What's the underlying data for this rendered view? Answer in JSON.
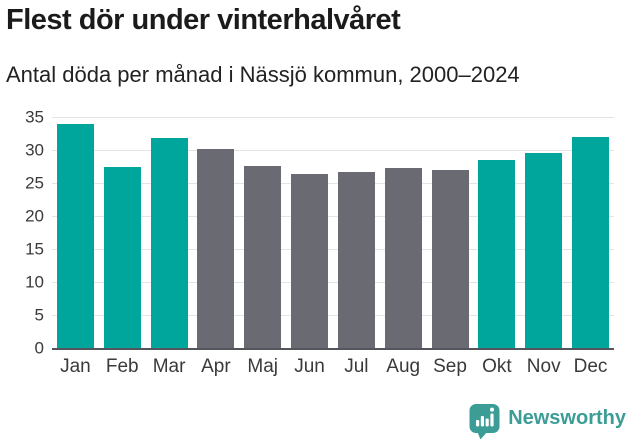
{
  "chart_data": {
    "type": "bar",
    "title": "Flest dör under vinterhalvåret",
    "subtitle": "Antal döda per månad i Nässjö kommun, 2000–2024",
    "categories": [
      "Jan",
      "Feb",
      "Mar",
      "Apr",
      "Maj",
      "Jun",
      "Jul",
      "Aug",
      "Sep",
      "Okt",
      "Nov",
      "Dec"
    ],
    "values": [
      33.9,
      27.4,
      31.8,
      30.2,
      27.6,
      26.4,
      26.6,
      27.2,
      27.0,
      28.5,
      29.6,
      32.0
    ],
    "bar_colors": [
      "#00A69B",
      "#00A69B",
      "#00A69B",
      "#6A6A73",
      "#6A6A73",
      "#6A6A73",
      "#6A6A73",
      "#6A6A73",
      "#6A6A73",
      "#00A69B",
      "#00A69B",
      "#00A69B"
    ],
    "highlight_color": "#00A69B",
    "muted_color": "#6A6A73",
    "xlabel": "",
    "ylabel": "",
    "ylim": [
      0,
      35
    ],
    "yticks": [
      0,
      5,
      10,
      15,
      20,
      25,
      30,
      35
    ],
    "grid": "horizontal-only",
    "legend": "none"
  },
  "footer": {
    "brand": "Newsworthy",
    "brand_color": "#3C9D96",
    "logo_icon": "bar-chart-speech-bubble-icon"
  }
}
